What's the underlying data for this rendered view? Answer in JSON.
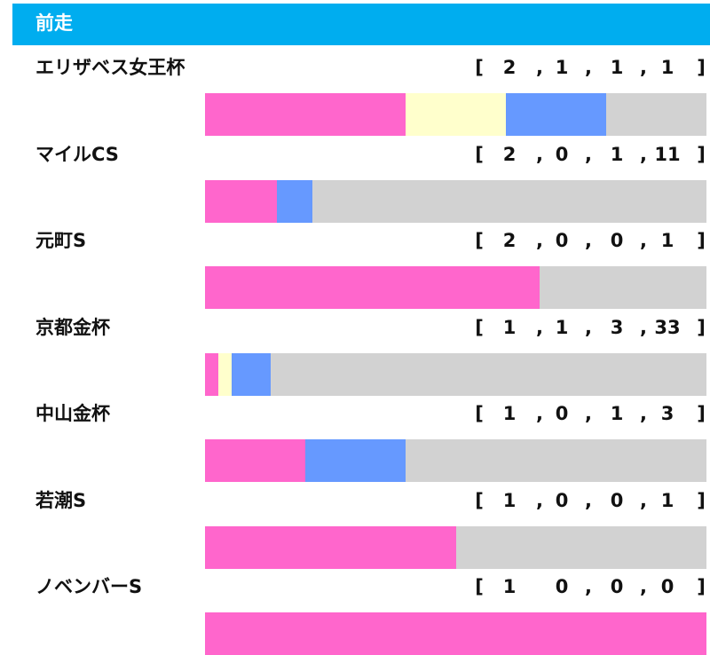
{
  "header": {
    "title": "前走"
  },
  "colors": {
    "first": "#ff66cc",
    "second": "#ffffcc",
    "third": "#6699ff",
    "other": "#d2d2d2",
    "header_bg": "#00adef"
  },
  "chart_data": {
    "type": "bar",
    "stacked": true,
    "orientation": "horizontal",
    "categories": [
      "エリザベス女王杯",
      "マイルCS",
      "元町S",
      "京都金杯",
      "中山金杯",
      "若潮S",
      "ノベンバーS"
    ],
    "series": [
      {
        "values": [
          2,
          2,
          2,
          1,
          1,
          1,
          1
        ]
      },
      {
        "values": [
          1,
          0,
          0,
          1,
          0,
          0,
          0
        ]
      },
      {
        "values": [
          1,
          1,
          0,
          3,
          1,
          0,
          0
        ]
      },
      {
        "values": [
          1,
          11,
          1,
          33,
          3,
          1,
          0
        ]
      }
    ],
    "records": [
      [
        "[",
        "2",
        ",",
        "1",
        ",",
        "1",
        ",",
        "1",
        "]"
      ],
      [
        "[",
        "2",
        ",",
        "0",
        ",",
        "1",
        ",",
        "11",
        "]"
      ],
      [
        "[",
        "2",
        ",",
        "0",
        ",",
        "0",
        ",",
        "1",
        "]"
      ],
      [
        "[",
        "1",
        ",",
        "1",
        ",",
        "3",
        ",",
        "33",
        "]"
      ],
      [
        "[",
        "1",
        ",",
        "0",
        ",",
        "1",
        ",",
        "3",
        "]"
      ],
      [
        "[",
        "1",
        ",",
        "0",
        ",",
        "0",
        ",",
        "1",
        "]"
      ],
      [
        "[",
        "1",
        "",
        "0",
        ",",
        "0",
        ",",
        "0",
        "]"
      ]
    ]
  }
}
